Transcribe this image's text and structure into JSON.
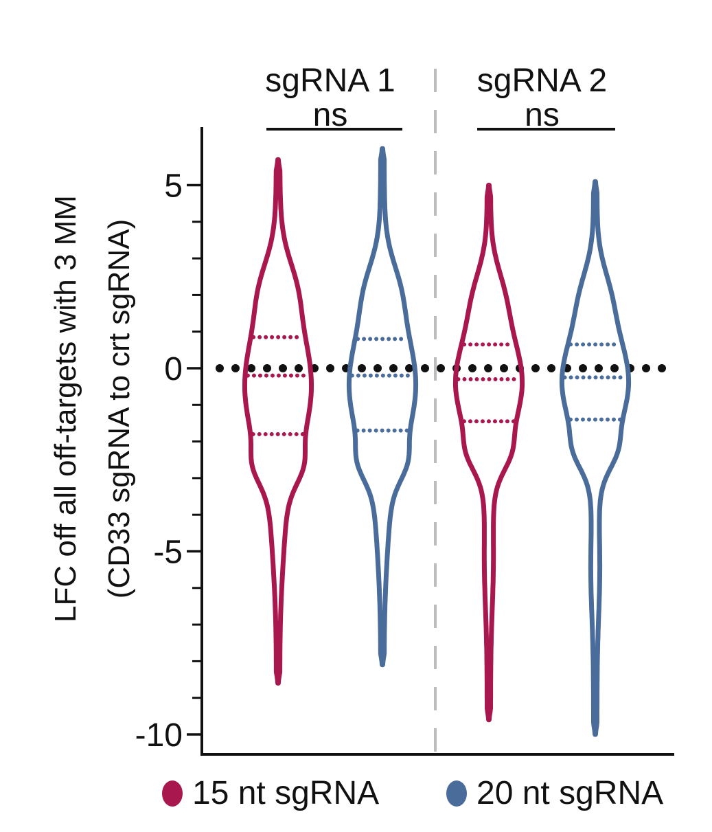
{
  "chart_data": {
    "type": "violin",
    "ylabel": "LFC off all off-targets with 3 MM",
    "ylabel2": "(CD33 sgRNA to crt sgRNA)",
    "ylim": [
      -10,
      6
    ],
    "yticks": [
      5,
      0,
      -5,
      -10
    ],
    "yticks_minor": [
      4,
      3,
      2,
      1,
      -1,
      -2,
      -3,
      -4,
      -6,
      -7,
      -8,
      -9
    ],
    "reference_line": 0,
    "groups": [
      {
        "label": "sgRNA 1",
        "significance": "ns",
        "violins": [
          {
            "series": "15 nt sgRNA",
            "min": -8.6,
            "max": 5.7,
            "median": -0.2,
            "q1": -1.8,
            "q3": 0.85
          },
          {
            "series": "20 nt sgRNA",
            "min": -8.1,
            "max": 6.0,
            "median": -0.2,
            "q1": -1.7,
            "q3": 0.8
          }
        ]
      },
      {
        "label": "sgRNA 2",
        "significance": "ns",
        "violins": [
          {
            "series": "15 nt sgRNA",
            "min": -9.6,
            "max": 5.0,
            "median": -0.3,
            "q1": -1.45,
            "q3": 0.65
          },
          {
            "series": "20 nt sgRNA",
            "min": -10.0,
            "max": 5.1,
            "median": -0.25,
            "q1": -1.4,
            "q3": 0.65
          }
        ]
      }
    ],
    "series": [
      {
        "name": "15 nt sgRNA",
        "color": "#A8184E"
      },
      {
        "name": "20 nt sgRNA",
        "color": "#4A6C9B"
      }
    ]
  }
}
